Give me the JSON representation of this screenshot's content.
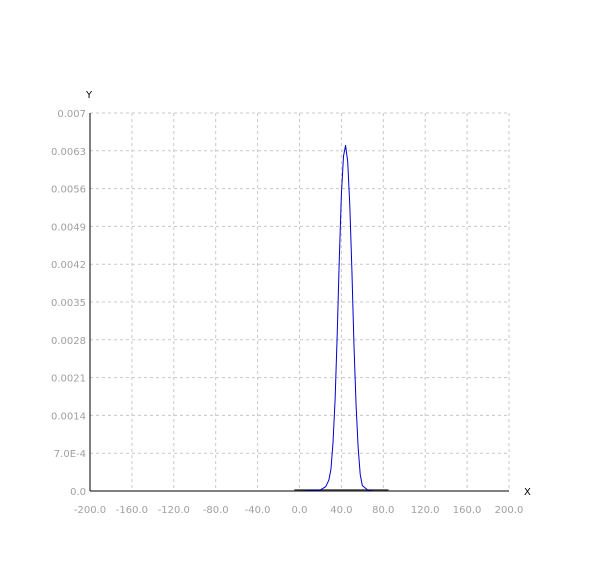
{
  "chart_data": {
    "type": "line",
    "title": "",
    "xlabel": "X",
    "ylabel": "Y",
    "xlim": [
      -200,
      200
    ],
    "ylim": [
      0,
      0.007
    ],
    "x_ticks": [
      -200,
      -160,
      -120,
      -80,
      -40,
      0,
      40,
      80,
      120,
      160,
      200
    ],
    "x_tick_labels": [
      "-200.0",
      "-160.0",
      "-120.0",
      "-80.0",
      "-40.0",
      "0.0",
      "40.0",
      "80.0",
      "120.0",
      "160.0",
      "200.0"
    ],
    "y_ticks": [
      0,
      0.0007,
      0.0014,
      0.0021,
      0.0028,
      0.0035,
      0.0042,
      0.0049,
      0.0056,
      0.0063,
      0.007
    ],
    "y_tick_labels": [
      "0.0",
      "7.0E-4",
      "0.0014",
      "0.0021",
      "0.0028",
      "0.0035",
      "0.0042",
      "0.0049",
      "0.0056",
      "0.0063",
      "0.007"
    ],
    "grid": true,
    "grid_style": "dashed",
    "legend": "none",
    "colors": {
      "axis": "#000000",
      "grid": "#c8c8c8",
      "tick_label": "#a0a0a0",
      "series_main": "#0000cc",
      "series_flat": "#1a1a1a"
    },
    "series": [
      {
        "color": "#0000cc",
        "x": [
          -190,
          -100,
          0,
          20,
          25,
          28,
          30,
          32,
          34,
          36,
          38,
          40,
          42,
          44,
          46,
          48,
          50,
          52,
          54,
          56,
          58,
          60,
          65,
          70,
          80,
          100,
          175
        ],
        "y": [
          0,
          0,
          0,
          2e-05,
          8e-05,
          0.0002,
          0.0004,
          0.0009,
          0.0017,
          0.0029,
          0.0043,
          0.0055,
          0.0062,
          0.0064,
          0.0061,
          0.0053,
          0.0041,
          0.0027,
          0.0016,
          0.0008,
          0.0003,
          0.0001,
          2e-05,
          0,
          0,
          0,
          0
        ]
      },
      {
        "color": "#1a1a1a",
        "x": [
          -5,
          85
        ],
        "y": [
          2e-05,
          2e-05
        ]
      }
    ]
  }
}
